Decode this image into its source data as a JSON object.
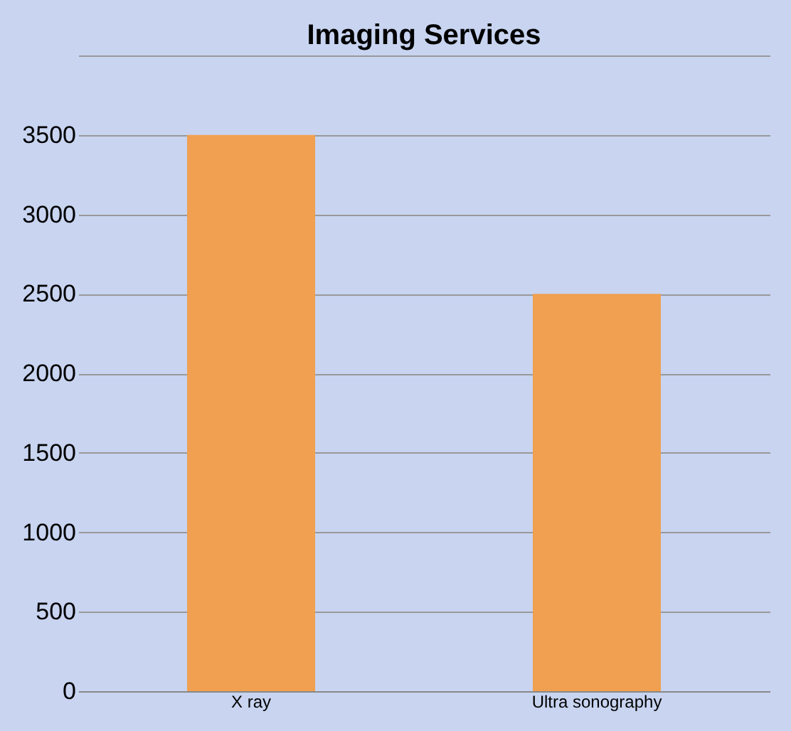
{
  "chart_data": {
    "type": "bar",
    "title": "Imaging Services",
    "categories": [
      "X ray",
      "Ultra sonography"
    ],
    "values": [
      3500,
      2500
    ],
    "color": "#f0a050",
    "ylim": [
      0,
      4000
    ],
    "yticks": [
      0,
      500,
      1000,
      1500,
      2000,
      2500,
      3000,
      3500,
      {
        "value": 4000,
        "label": null
      }
    ],
    "grid": "y"
  }
}
